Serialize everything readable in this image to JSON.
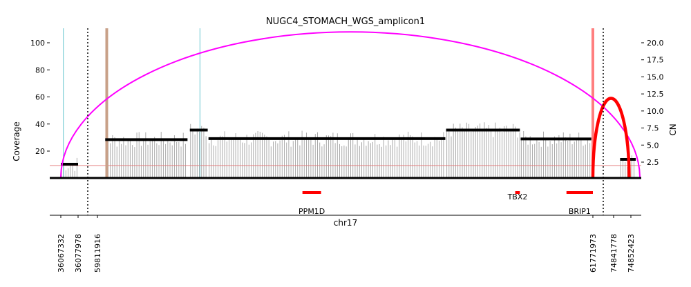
{
  "chart_data": {
    "type": "line",
    "title": "NUGC4_STOMACH_WGS_amplicon1",
    "xlabel": "chr17",
    "ylabel": "Coverage",
    "y2label": "CN",
    "ylim": [
      0,
      110
    ],
    "y2lim": [
      0,
      22
    ],
    "yticks": [
      20,
      40,
      60,
      80,
      100
    ],
    "y2ticks": [
      "2.5",
      "5.0",
      "7.5",
      "10.0",
      "12.5",
      "15.0",
      "17.5",
      "20.0"
    ],
    "x_breakpoints": [
      "36067332",
      "36077978",
      "59811916",
      "61771973",
      "74841778",
      "74852423"
    ],
    "segments": [
      {
        "from": 0.0,
        "to": 1.0
      },
      {
        "from": 1.0,
        "to": 2.0
      }
    ],
    "cn_segments": [
      {
        "from": 0.0,
        "to": 1.0,
        "cn": 2.2
      },
      {
        "from": 1.05,
        "to": 1.58,
        "cn": 5.8
      },
      {
        "from": 1.595,
        "to": 1.71,
        "cn": 7.2
      },
      {
        "from": 1.715,
        "to": 3.24,
        "cn": 5.95
      },
      {
        "from": 3.245,
        "to": 3.72,
        "cn": 7.2
      },
      {
        "from": 3.725,
        "to": 4.18,
        "cn": 5.9
      },
      {
        "from": 4.52,
        "to": 4.71,
        "cn": 2.9
      }
    ],
    "genes": [
      {
        "name": "PPM1D",
        "start": 2.32,
        "end": 2.44,
        "label": "PPM1D"
      },
      {
        "name": "TBX2",
        "start": 3.69,
        "end": 3.72,
        "label": "TBX2"
      },
      {
        "name": "BRIP1",
        "start": 4.02,
        "end": 4.19,
        "label": "BRIP1"
      }
    ],
    "breakpoint_lines": [
      {
        "pos": 0.15,
        "color": "#67c5cf"
      },
      {
        "pos": 1.06,
        "color": "#c8a088"
      },
      {
        "pos": 1.66,
        "color": "#67c5cf"
      },
      {
        "pos": 4.19,
        "color": "#ff7f7f"
      }
    ],
    "arcs": [
      {
        "start": 0.0,
        "end": 4.76,
        "height": 108,
        "color": "#ff00ff"
      },
      {
        "start": 4.19,
        "end": 4.63,
        "height": 59,
        "color": "#ff0000"
      }
    ],
    "threshold_cn": 2.0,
    "colors": {
      "coverage_bars": "#aaaaaa",
      "cn_segments": "#000000",
      "genes": "#ff0000",
      "threshold": "#e07070"
    }
  }
}
